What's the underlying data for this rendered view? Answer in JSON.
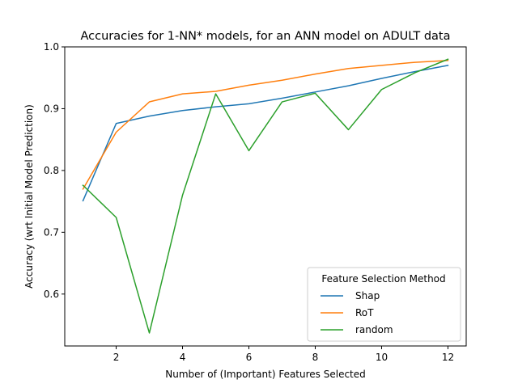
{
  "chart_data": {
    "type": "line",
    "title": "Accuracies for 1-NN* models, for an ANN model on ADULT data",
    "xlabel": "Number of (Important) Features Selected",
    "ylabel": "Accuracy (wrt Initial Model Prediction)",
    "x": [
      1,
      2,
      3,
      4,
      5,
      6,
      7,
      8,
      9,
      10,
      11,
      12
    ],
    "xlim": [
      0.45,
      12.55
    ],
    "ylim": [
      0.516,
      1.0
    ],
    "xticks": [
      2,
      4,
      6,
      8,
      10,
      12
    ],
    "yticks": [
      0.6,
      0.7,
      0.8,
      0.9,
      1.0
    ],
    "xtick_labels": [
      "2",
      "4",
      "6",
      "8",
      "10",
      "12"
    ],
    "ytick_labels": [
      "0.6",
      "0.7",
      "0.8",
      "0.9",
      "1.0"
    ],
    "grid": false,
    "legend": {
      "title": "Feature Selection Method",
      "placement": "lower-right"
    },
    "series": [
      {
        "name": "Shap",
        "color": "#1f77b4",
        "values": [
          0.751,
          0.876,
          0.888,
          0.897,
          0.903,
          0.908,
          0.917,
          0.927,
          0.937,
          0.949,
          0.96,
          0.97
        ]
      },
      {
        "name": "RoT",
        "color": "#ff7f0e",
        "values": [
          0.77,
          0.862,
          0.911,
          0.924,
          0.928,
          0.938,
          0.946,
          0.956,
          0.965,
          0.97,
          0.975,
          0.978
        ]
      },
      {
        "name": "random",
        "color": "#2ca02c",
        "values": [
          0.776,
          0.724,
          0.537,
          0.76,
          0.924,
          0.832,
          0.911,
          0.925,
          0.866,
          0.931,
          0.958,
          0.98
        ]
      }
    ]
  }
}
